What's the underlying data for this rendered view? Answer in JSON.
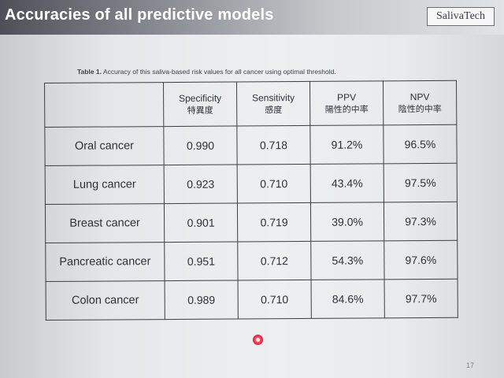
{
  "slide": {
    "title": "Accuracies of all predictive models",
    "logo_text": "SalivaTech",
    "page_number": "17"
  },
  "table": {
    "caption_label": "Table 1.",
    "caption_text": " Accuracy of this saliva-based risk values for all cancer using optimal threshold.",
    "columns": [
      {
        "en": "",
        "jp": ""
      },
      {
        "en": "Specificity",
        "jp": "特異度"
      },
      {
        "en": "Sensitivity",
        "jp": "感度"
      },
      {
        "en": "PPV",
        "jp": "陽性的中率"
      },
      {
        "en": "NPV",
        "jp": "陰性的中率"
      }
    ],
    "rows": [
      {
        "name": "Oral cancer",
        "specificity": "0.990",
        "sensitivity": "0.718",
        "ppv": "91.2%",
        "npv": "96.5%"
      },
      {
        "name": "Lung cancer",
        "specificity": "0.923",
        "sensitivity": "0.710",
        "ppv": "43.4%",
        "npv": "97.5%"
      },
      {
        "name": "Breast cancer",
        "specificity": "0.901",
        "sensitivity": "0.719",
        "ppv": "39.0%",
        "npv": "97.3%"
      },
      {
        "name": "Pancreatic cancer",
        "specificity": "0.951",
        "sensitivity": "0.712",
        "ppv": "54.3%",
        "npv": "97.6%"
      },
      {
        "name": "Colon cancer",
        "specificity": "0.989",
        "sensitivity": "0.710",
        "ppv": "84.6%",
        "npv": "97.7%"
      }
    ]
  },
  "colors": {
    "header_dark": "#4d5058",
    "text": "#2e3038",
    "pointer": "#ff4158"
  },
  "icons": {
    "pointer": "laser-pointer-dot-icon"
  }
}
